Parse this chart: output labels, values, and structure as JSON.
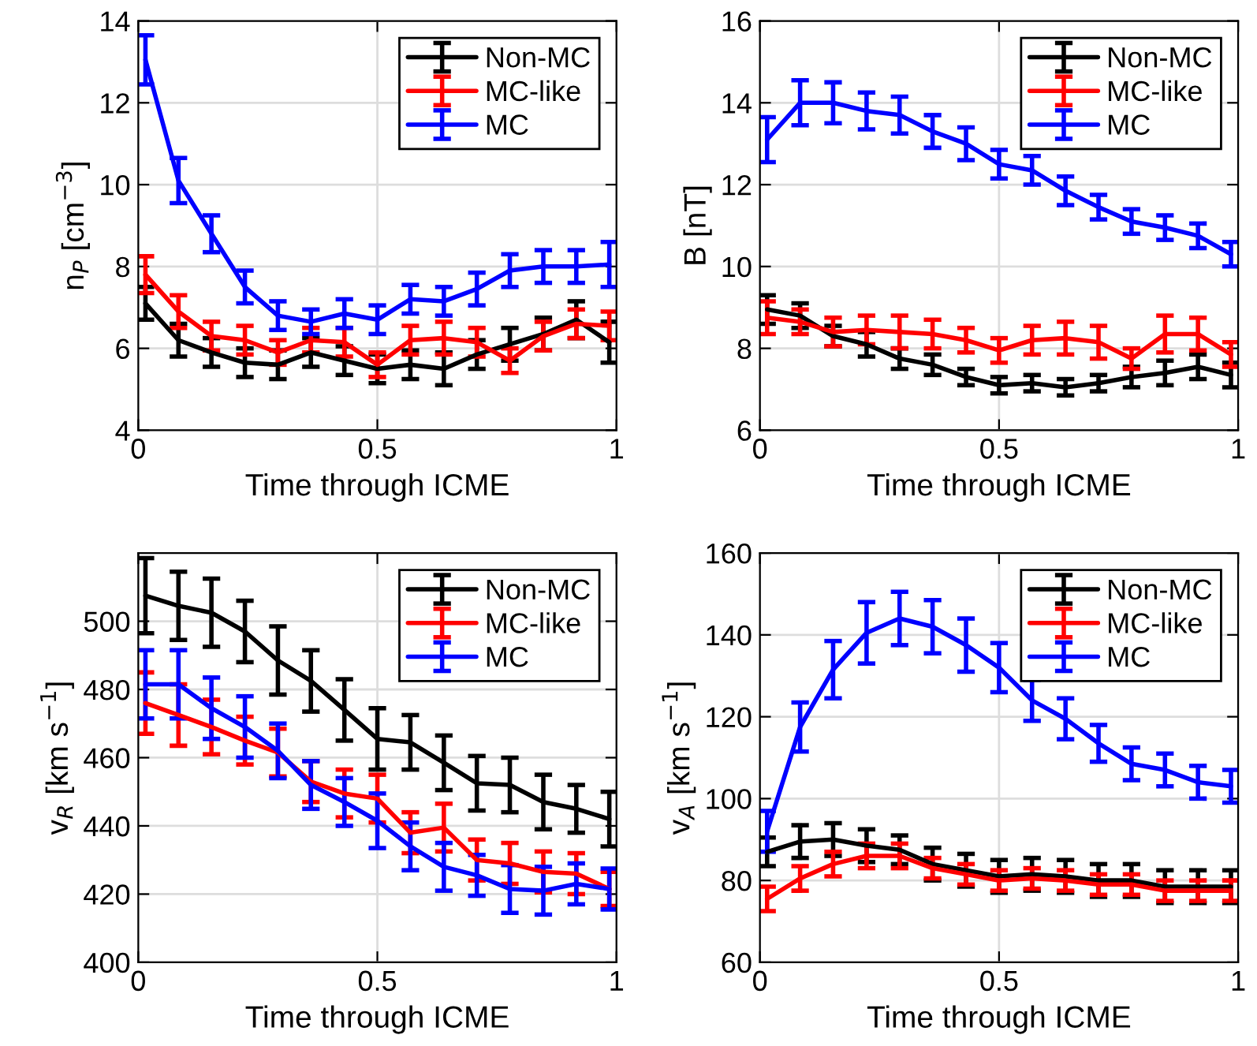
{
  "chart_data": [
    {
      "type": "line",
      "xlabel": "Time through ICME",
      "ylabel": "n$_{P}$ [cm$^{−3}$]",
      "x": [
        0.015,
        0.084,
        0.153,
        0.223,
        0.292,
        0.361,
        0.431,
        0.5,
        0.569,
        0.639,
        0.708,
        0.777,
        0.847,
        0.916,
        0.985
      ],
      "xlim": [
        0,
        1
      ],
      "xticks": [
        0,
        0.5,
        1
      ],
      "ylim": [
        4,
        14
      ],
      "yticks": [
        4,
        6,
        8,
        10,
        12,
        14
      ],
      "grid": true,
      "legend": "top right",
      "marker": "none",
      "line_style": "solid",
      "series": [
        {
          "name": "Non-MC",
          "color": "#000000",
          "values": [
            7.1,
            6.2,
            5.9,
            5.65,
            5.6,
            5.9,
            5.7,
            5.5,
            5.6,
            5.5,
            5.85,
            6.1,
            6.35,
            6.7,
            6.15
          ],
          "errors": [
            0.4,
            0.4,
            0.35,
            0.35,
            0.35,
            0.35,
            0.35,
            0.35,
            0.35,
            0.4,
            0.35,
            0.4,
            0.4,
            0.45,
            0.5
          ]
        },
        {
          "name": "MC-like",
          "color": "#ff0000",
          "values": [
            7.8,
            6.9,
            6.3,
            6.2,
            5.9,
            6.2,
            6.15,
            5.6,
            6.2,
            6.25,
            6.15,
            5.7,
            6.3,
            6.6,
            6.55
          ],
          "errors": [
            0.45,
            0.4,
            0.35,
            0.35,
            0.3,
            0.3,
            0.35,
            0.3,
            0.35,
            0.4,
            0.35,
            0.3,
            0.35,
            0.35,
            0.35
          ]
        },
        {
          "name": "MC",
          "color": "#0000ff",
          "values": [
            13.05,
            10.1,
            8.8,
            7.5,
            6.8,
            6.65,
            6.85,
            6.7,
            7.2,
            7.15,
            7.45,
            7.9,
            8.0,
            8.0,
            8.05
          ],
          "errors": [
            0.6,
            0.55,
            0.45,
            0.4,
            0.35,
            0.3,
            0.35,
            0.35,
            0.35,
            0.35,
            0.4,
            0.4,
            0.4,
            0.4,
            0.55
          ]
        }
      ]
    },
    {
      "type": "line",
      "xlabel": "Time through ICME",
      "ylabel": "B [nT]",
      "x": [
        0.015,
        0.084,
        0.153,
        0.223,
        0.292,
        0.361,
        0.431,
        0.5,
        0.569,
        0.639,
        0.708,
        0.777,
        0.847,
        0.916,
        0.985
      ],
      "xlim": [
        0,
        1
      ],
      "xticks": [
        0,
        0.5,
        1
      ],
      "ylim": [
        6,
        16
      ],
      "yticks": [
        6,
        8,
        10,
        12,
        14,
        16
      ],
      "grid": true,
      "legend": "top right",
      "marker": "none",
      "line_style": "solid",
      "series": [
        {
          "name": "Non-MC",
          "color": "#000000",
          "values": [
            8.95,
            8.8,
            8.3,
            8.1,
            7.75,
            7.6,
            7.3,
            7.1,
            7.15,
            7.05,
            7.15,
            7.3,
            7.4,
            7.55,
            7.35
          ],
          "errors": [
            0.35,
            0.3,
            0.25,
            0.3,
            0.25,
            0.25,
            0.2,
            0.2,
            0.2,
            0.2,
            0.2,
            0.25,
            0.3,
            0.3,
            0.3
          ]
        },
        {
          "name": "MC-like",
          "color": "#ff0000",
          "values": [
            8.75,
            8.65,
            8.4,
            8.45,
            8.4,
            8.35,
            8.2,
            7.95,
            8.2,
            8.25,
            8.15,
            7.75,
            8.35,
            8.35,
            7.85
          ],
          "errors": [
            0.4,
            0.3,
            0.35,
            0.35,
            0.4,
            0.35,
            0.3,
            0.3,
            0.35,
            0.4,
            0.4,
            0.25,
            0.45,
            0.4,
            0.3
          ]
        },
        {
          "name": "MC",
          "color": "#0000ff",
          "values": [
            13.1,
            14.0,
            14.0,
            13.8,
            13.7,
            13.3,
            13.0,
            12.5,
            12.35,
            11.85,
            11.45,
            11.1,
            10.95,
            10.75,
            10.3
          ],
          "errors": [
            0.55,
            0.55,
            0.5,
            0.45,
            0.45,
            0.4,
            0.4,
            0.35,
            0.35,
            0.35,
            0.3,
            0.3,
            0.3,
            0.3,
            0.3
          ]
        }
      ]
    },
    {
      "type": "line",
      "xlabel": "Time through ICME",
      "ylabel": "v$_{R}$ [km s$^{−1}$]",
      "x": [
        0.015,
        0.084,
        0.153,
        0.223,
        0.292,
        0.361,
        0.431,
        0.5,
        0.569,
        0.639,
        0.708,
        0.777,
        0.847,
        0.916,
        0.985
      ],
      "xlim": [
        0,
        1
      ],
      "xticks": [
        0,
        0.5,
        1
      ],
      "ylim": [
        400,
        520
      ],
      "yticks": [
        400,
        420,
        440,
        460,
        480,
        500
      ],
      "grid": true,
      "legend": "top right",
      "marker": "none",
      "line_style": "solid",
      "series": [
        {
          "name": "Non-MC",
          "color": "#000000",
          "values": [
            507.5,
            504.5,
            502.5,
            497,
            488.5,
            482.5,
            474,
            465.5,
            464.5,
            458.5,
            452.5,
            452,
            447,
            445,
            442
          ],
          "errors": [
            11,
            10,
            10,
            9,
            10,
            9,
            9,
            9,
            8,
            8,
            8,
            8,
            8,
            7,
            8
          ]
        },
        {
          "name": "MC-like",
          "color": "#ff0000",
          "values": [
            476,
            472.5,
            469,
            465,
            461.5,
            453,
            449.5,
            448,
            438,
            439.5,
            430,
            429,
            426.5,
            426,
            421.5
          ],
          "errors": [
            9,
            9,
            8,
            7,
            7,
            6,
            7,
            7,
            6,
            7,
            6,
            6,
            6,
            6,
            5
          ]
        },
        {
          "name": "MC",
          "color": "#0000ff",
          "values": [
            481.5,
            481.5,
            474.5,
            469,
            462,
            452,
            447,
            441.5,
            434,
            428,
            425.5,
            421.5,
            421,
            423,
            421.5
          ],
          "errors": [
            10,
            10,
            9,
            9,
            8,
            7,
            7,
            8,
            7,
            7,
            6,
            7,
            7,
            6,
            6
          ]
        }
      ]
    },
    {
      "type": "line",
      "xlabel": "Time through ICME",
      "ylabel": "v$_{A}$ [km s$^{−1}$]",
      "x": [
        0.015,
        0.084,
        0.153,
        0.223,
        0.292,
        0.361,
        0.431,
        0.5,
        0.569,
        0.639,
        0.708,
        0.777,
        0.847,
        0.916,
        0.985
      ],
      "xlim": [
        0,
        1
      ],
      "xticks": [
        0,
        0.5,
        1
      ],
      "ylim": [
        60,
        160
      ],
      "yticks": [
        60,
        80,
        100,
        120,
        140,
        160
      ],
      "grid": true,
      "legend": "top right",
      "marker": "none",
      "line_style": "solid",
      "series": [
        {
          "name": "Non-MC",
          "color": "#000000",
          "values": [
            87,
            89.5,
            90,
            88.5,
            87.5,
            84,
            82.5,
            81,
            81.5,
            81,
            80,
            80,
            78.5,
            78.5,
            78.5
          ],
          "errors": [
            3.5,
            4,
            4,
            4,
            3.5,
            4,
            4,
            4,
            4,
            4,
            4,
            4,
            4,
            4,
            4
          ]
        },
        {
          "name": "MC-like",
          "color": "#ff0000",
          "values": [
            75.5,
            80.5,
            84,
            86,
            86,
            83,
            81.5,
            80,
            80.5,
            80,
            79,
            79,
            77.5,
            77.5,
            77.5
          ],
          "errors": [
            3,
            3,
            3,
            3,
            3,
            2.5,
            2.5,
            2.5,
            2.5,
            2.5,
            2.5,
            2.5,
            2.5,
            2.5,
            2.5
          ]
        },
        {
          "name": "MC",
          "color": "#0000ff",
          "values": [
            92,
            117.5,
            131.5,
            140.5,
            144,
            142,
            137.5,
            132,
            124,
            119.5,
            113.5,
            108.5,
            107,
            104,
            103
          ],
          "errors": [
            5,
            6,
            7,
            7.5,
            6.5,
            6.5,
            6.5,
            6,
            5,
            5,
            4.5,
            4,
            4,
            4,
            4
          ]
        }
      ]
    }
  ]
}
